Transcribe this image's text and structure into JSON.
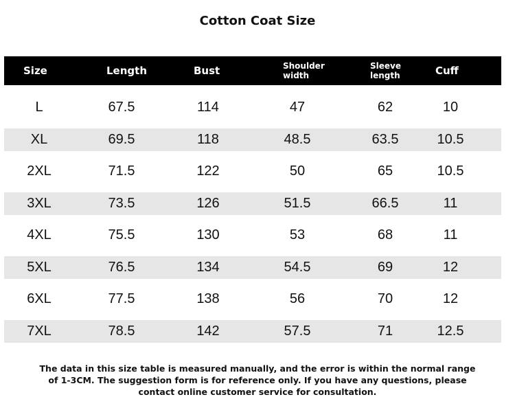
{
  "title": "Cotton Coat Size",
  "table": {
    "header": [
      "Size",
      "Length",
      "Bust",
      "Shoulder width",
      "Sleeve length",
      "Cuff"
    ],
    "rows": [
      [
        "L",
        67.5,
        114,
        47,
        62,
        10
      ],
      [
        "XL",
        69.5,
        118,
        48.5,
        63.5,
        10.5
      ],
      [
        "2XL",
        71.5,
        122,
        50,
        65,
        10.5
      ],
      [
        "3XL",
        73.5,
        126,
        51.5,
        66.5,
        11
      ],
      [
        "4XL",
        75.5,
        130,
        53,
        68,
        11
      ],
      [
        "5XL",
        76.5,
        134,
        54.5,
        69,
        12
      ],
      [
        "6XL",
        77.5,
        138,
        56,
        70,
        12
      ],
      [
        "7XL",
        78.5,
        142,
        57.5,
        71,
        12.5
      ]
    ]
  },
  "note": [
    "The data in this size table is measured manually, and the error is within the normal range",
    "of 1-3CM. The suggestion form is for reference only. If you have any questions, please",
    "contact online customer service for consultation."
  ]
}
